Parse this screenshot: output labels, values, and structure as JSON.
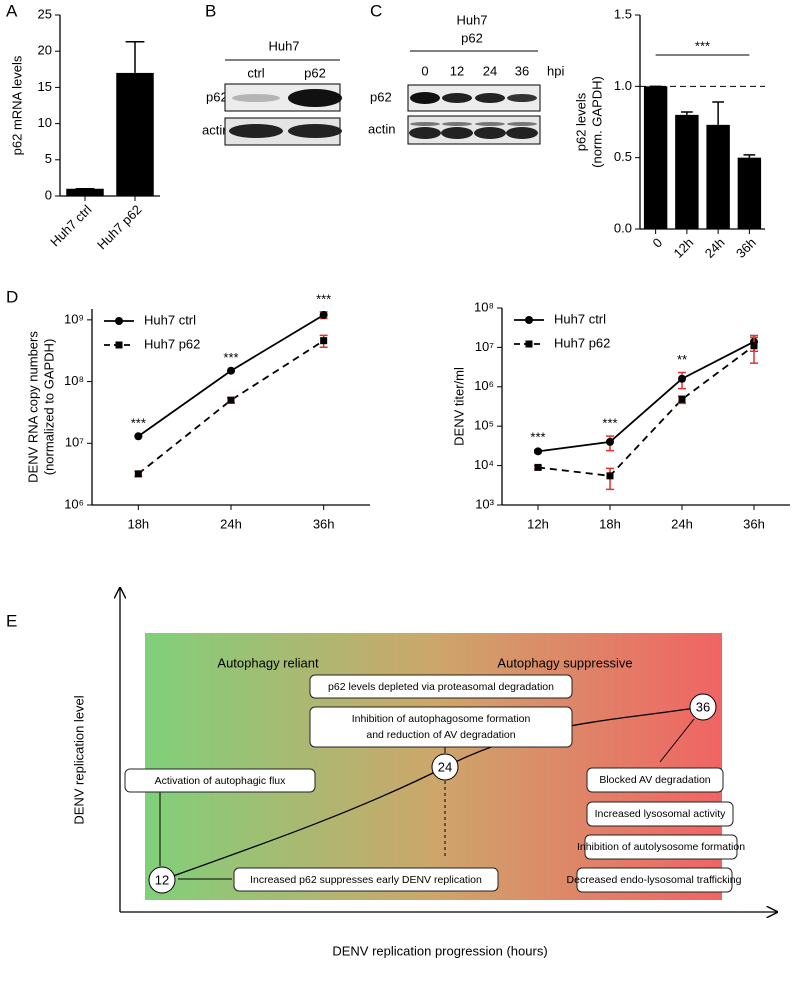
{
  "panels": [
    "A",
    "B",
    "C",
    "D",
    "E"
  ],
  "chart_data": [
    {
      "type": "bar",
      "y_label": [
        "p62 mRNA levels"
      ],
      "categories": [
        "Huh7 ctrl",
        "Huh7 p62"
      ],
      "values": [
        1,
        17
      ],
      "errors": [
        0,
        4.3
      ],
      "color": "#000000",
      "ylim": [
        0,
        25
      ],
      "yticks": [
        0,
        5,
        10,
        15,
        20,
        25
      ]
    },
    {
      "type": "bar",
      "y_label": [
        "p62 levels",
        "(norm. GAPDH)"
      ],
      "categories": [
        "0",
        "12h",
        "24h",
        "36h"
      ],
      "values": [
        1.0,
        0.8,
        0.73,
        0.5
      ],
      "errors": [
        0,
        0.02,
        0.16,
        0.02
      ],
      "color": "#000000",
      "reference_line": 1,
      "significance": "***",
      "ylim": [
        0,
        1.5
      ],
      "yticks": [
        {
          "value": 0,
          "label": "0.0"
        },
        {
          "value": 0.5,
          "label": "0.5"
        },
        {
          "value": 1,
          "label": "1.0"
        },
        {
          "value": 1.5,
          "label": "1.5"
        }
      ]
    },
    {
      "type": "line",
      "log": true,
      "y_label": [
        "DENV RNA copy numbers",
        "(normalized to GAPDH)"
      ],
      "categories": [
        "18h",
        "24h",
        "36h"
      ],
      "error_color": "#e0312c",
      "series": [
        {
          "name": "Huh7 ctrl",
          "color": "#000000",
          "marker": "circle",
          "dashed": false,
          "values": [
            13000000,
            150000000,
            1200000000
          ],
          "errors": [
            0,
            0,
            150000000
          ]
        },
        {
          "name": "Huh7 p62",
          "color": "#000000",
          "marker": "square",
          "dashed": true,
          "values": [
            3200000,
            50000000,
            460000000
          ],
          "errors": [
            300000,
            5000000,
            100000000
          ]
        }
      ],
      "significance": [
        "***",
        "***",
        "***"
      ],
      "ylim": [
        1000000,
        1500000000
      ],
      "yticks": [
        {
          "value": 1000000,
          "label": "10⁶"
        },
        {
          "value": 10000000,
          "label": "10⁷"
        },
        {
          "value": 100000000,
          "label": "10⁸"
        },
        {
          "value": 1000000000,
          "label": "10⁹"
        }
      ]
    },
    {
      "type": "line",
      "log": true,
      "y_label": [
        "DENV titer/ml"
      ],
      "categories": [
        "12h",
        "18h",
        "24h",
        "36h"
      ],
      "error_color": "#e0312c",
      "series": [
        {
          "name": "Huh7 ctrl",
          "color": "#000000",
          "marker": "circle",
          "dashed": false,
          "values": [
            23000,
            40000,
            1600000,
            14000000
          ],
          "errors": [
            2000,
            16000,
            700000,
            6000000
          ]
        },
        {
          "name": "Huh7 p62",
          "color": "#000000",
          "marker": "square",
          "dashed": true,
          "values": [
            9000,
            5500,
            480000,
            11000000
          ],
          "errors": [
            1000,
            3000,
            100000,
            7000000
          ]
        }
      ],
      "significance": [
        "***",
        "***",
        "**",
        null
      ],
      "ylim": [
        1000,
        100000000
      ],
      "yticks": [
        {
          "value": 1000,
          "label": "10³"
        },
        {
          "value": 10000,
          "label": "10⁴"
        },
        {
          "value": 100000,
          "label": "10⁵"
        },
        {
          "value": 1000000,
          "label": "10⁶"
        },
        {
          "value": 10000000,
          "label": "10⁷"
        },
        {
          "value": 100000000,
          "label": "10⁸"
        }
      ]
    }
  ],
  "blots": [
    {
      "title": [
        "Huh7"
      ],
      "lanes": [
        "ctrl",
        "p62"
      ],
      "rows": [
        "p62",
        "actin"
      ]
    },
    {
      "title": [
        "Huh7",
        "p62"
      ],
      "lanes": [
        "0",
        "12",
        "24",
        "36"
      ],
      "lane_unit": "hpi",
      "rows": [
        "p62",
        "actin"
      ]
    }
  ],
  "diagram": {
    "y_axis_label": "DENV replication level",
    "x_axis_label": "DENV replication progression (hours)",
    "phases": [
      "Autophagy reliant",
      "Autophagy suppressive"
    ],
    "nodes": [
      "12",
      "24",
      "36"
    ],
    "boxes": [
      {
        "lines": [
          "Activation of autophagic flux"
        ]
      },
      {
        "lines": [
          "Increased p62 suppresses early DENV replication"
        ]
      },
      {
        "lines": [
          "p62 levels depleted via proteasomal degradation"
        ]
      },
      {
        "lines": [
          "Inhibition of autophagosome formation",
          "and reduction of AV degradation"
        ]
      },
      {
        "lines": [
          "Blocked AV degradation"
        ]
      },
      {
        "lines": [
          "Increased lysosomal activity"
        ]
      },
      {
        "lines": [
          "Inhibition of autolysosome formation"
        ]
      },
      {
        "lines": [
          "Decreased endo-lysosomal trafficking"
        ]
      }
    ]
  }
}
